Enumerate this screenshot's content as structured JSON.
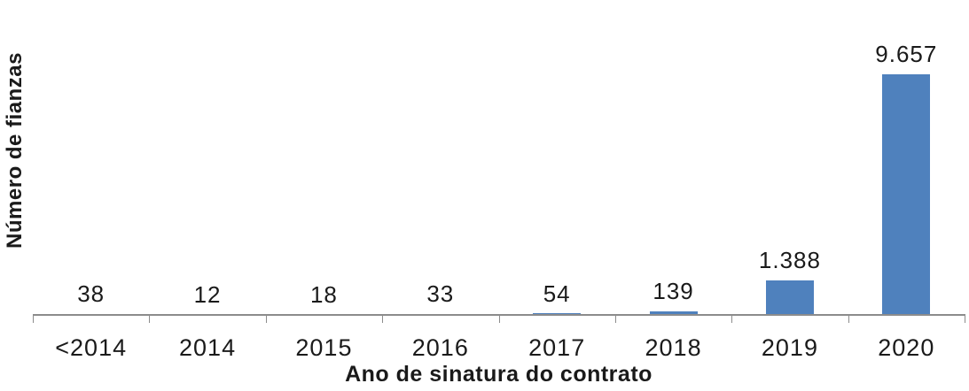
{
  "chart_data": {
    "type": "bar",
    "categories": [
      "<2014",
      "2014",
      "2015",
      "2016",
      "2017",
      "2018",
      "2019",
      "2020"
    ],
    "values": [
      38,
      12,
      18,
      33,
      54,
      139,
      1388,
      9657
    ],
    "value_labels": [
      "38",
      "12",
      "18",
      "33",
      "54",
      "139",
      "1.388",
      "9.657"
    ],
    "title": "",
    "xlabel": "Ano de sinatura do contrato",
    "ylabel": "Número de fianzas",
    "ylim": [
      0,
      9657
    ],
    "grid": false,
    "legend": false,
    "bar_color": "#4F81BD",
    "axis_color": "#8C8C8C",
    "text_color": "#1a1a1a"
  }
}
